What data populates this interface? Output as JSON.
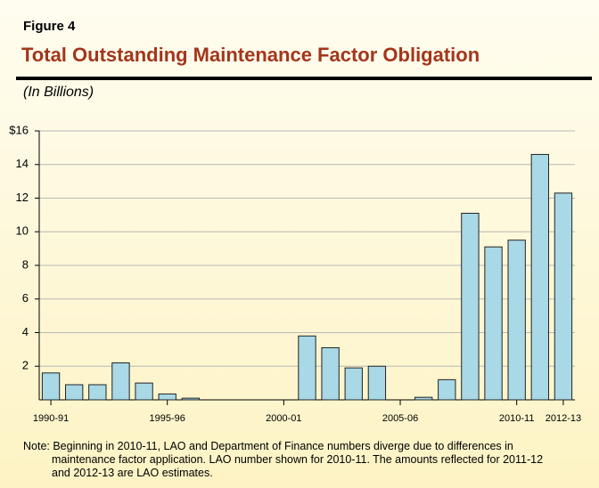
{
  "chart_data": {
    "type": "bar",
    "figure_label": "Figure 4",
    "title": "Total Outstanding Maintenance Factor Obligation",
    "subtitle": "(In Billions)",
    "categories": [
      "1990-91",
      null,
      null,
      null,
      null,
      "1995-96",
      null,
      null,
      null,
      null,
      "2000-01",
      null,
      null,
      null,
      null,
      "2005-06",
      null,
      null,
      null,
      null,
      "2010-11",
      null,
      "2012-13"
    ],
    "values": [
      1.6,
      0.9,
      0.9,
      2.2,
      1.0,
      0.35,
      0.1,
      0,
      0,
      0,
      0,
      3.8,
      3.1,
      1.9,
      2.0,
      0,
      0.15,
      1.2,
      11.1,
      9.1,
      9.5,
      14.6,
      12.3
    ],
    "color": "#a9d9e6",
    "ylim": [
      0,
      16
    ],
    "yticks": [
      2,
      4,
      6,
      8,
      10,
      12,
      14,
      {
        "value": 16,
        "label": "$16"
      }
    ],
    "grid": true,
    "note": "Note: Beginning in 2010-11, LAO and Department of Finance numbers diverge due to differences in maintenance factor application. LAO number shown for 2010-11. The amounts reflected for 2011-12 and 2012-13 are LAO estimates."
  }
}
